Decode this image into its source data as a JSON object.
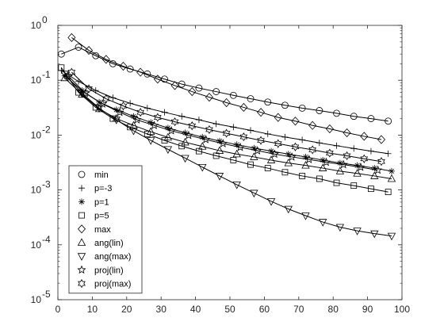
{
  "chart_data": {
    "type": "line",
    "title": "",
    "xlabel": "",
    "ylabel": "",
    "xlim": [
      0,
      100
    ],
    "ylim": [
      1e-05,
      1
    ],
    "yscale": "log",
    "grid": false,
    "legend_location": "lower-left",
    "line_color": "#000000",
    "x_ticks": [
      "0",
      "10",
      "20",
      "30",
      "40",
      "50",
      "60",
      "70",
      "80",
      "90",
      "100"
    ],
    "y_ticks": [
      {
        "base": "10",
        "exp": "0"
      },
      {
        "base": "10",
        "exp": "-1"
      },
      {
        "base": "10",
        "exp": "-2"
      },
      {
        "base": "10",
        "exp": "-3"
      },
      {
        "base": "10",
        "exp": "-4"
      },
      {
        "base": "10",
        "exp": "-5"
      }
    ],
    "series": [
      {
        "name": "min",
        "marker": "circle",
        "x": [
          1,
          6,
          11,
          16,
          21,
          26,
          31,
          36,
          41,
          46,
          51,
          56,
          61,
          66,
          71,
          76,
          81,
          86,
          91,
          96
        ],
        "y": [
          0.3,
          0.4,
          0.28,
          0.2,
          0.16,
          0.13,
          0.105,
          0.085,
          0.072,
          0.062,
          0.053,
          0.046,
          0.04,
          0.035,
          0.031,
          0.028,
          0.025,
          0.022,
          0.02,
          0.018
        ]
      },
      {
        "name": "p=-3",
        "marker": "plus",
        "x": [
          1,
          6,
          11,
          16,
          21,
          26,
          31,
          36,
          41,
          46,
          51,
          56,
          61,
          66,
          71,
          76,
          81,
          86,
          91,
          96
        ],
        "y": [
          0.15,
          0.095,
          0.065,
          0.048,
          0.038,
          0.031,
          0.026,
          0.022,
          0.019,
          0.016,
          0.014,
          0.0122,
          0.0105,
          0.0092,
          0.0082,
          0.0072,
          0.0064,
          0.0057,
          0.0051,
          0.0046
        ]
      },
      {
        "name": "p=1",
        "marker": "asterisk",
        "x": [
          2,
          7,
          12,
          17,
          22,
          27,
          32,
          37,
          42,
          47,
          52,
          57,
          62,
          67,
          72,
          77,
          82,
          87,
          92,
          97
        ],
        "y": [
          0.12,
          0.065,
          0.04,
          0.029,
          0.022,
          0.017,
          0.0135,
          0.011,
          0.0092,
          0.0078,
          0.0067,
          0.0058,
          0.0051,
          0.0045,
          0.004,
          0.0035,
          0.0031,
          0.0028,
          0.0025,
          0.0022
        ]
      },
      {
        "name": "p=5",
        "marker": "square",
        "x": [
          1,
          6,
          11,
          16,
          21,
          26,
          31,
          36,
          41,
          46,
          51,
          56,
          61,
          66,
          71,
          76,
          81,
          86,
          91,
          96
        ],
        "y": [
          0.17,
          0.06,
          0.032,
          0.02,
          0.014,
          0.0105,
          0.008,
          0.0063,
          0.0051,
          0.0042,
          0.0035,
          0.0029,
          0.0025,
          0.0021,
          0.0018,
          0.0016,
          0.00135,
          0.0012,
          0.00105,
          0.00092
        ]
      },
      {
        "name": "max",
        "marker": "diamond",
        "x": [
          4,
          9,
          14,
          19,
          24,
          29,
          34,
          39,
          44,
          49,
          54,
          59,
          64,
          69,
          74,
          79,
          84,
          89,
          94
        ],
        "y": [
          0.6,
          0.35,
          0.24,
          0.18,
          0.14,
          0.105,
          0.08,
          0.062,
          0.049,
          0.039,
          0.032,
          0.026,
          0.021,
          0.018,
          0.015,
          0.013,
          0.011,
          0.0095,
          0.0083
        ]
      },
      {
        "name": "ang(lin)",
        "marker": "triangle-up",
        "x": [
          2,
          7,
          12,
          17,
          22,
          27,
          32,
          37,
          42,
          47,
          52,
          57,
          62,
          67,
          72,
          77,
          82,
          87,
          92,
          97
        ],
        "y": [
          0.11,
          0.055,
          0.03,
          0.02,
          0.015,
          0.0115,
          0.0091,
          0.0074,
          0.0062,
          0.0052,
          0.0045,
          0.004,
          0.0035,
          0.0031,
          0.0028,
          0.0025,
          0.0022,
          0.002,
          0.0018,
          0.0016
        ]
      },
      {
        "name": "ang(max)",
        "marker": "triangle-down",
        "x": [
          2,
          7,
          12,
          17,
          22,
          27,
          32,
          37,
          42,
          47,
          52,
          57,
          62,
          67,
          72,
          77,
          82,
          87,
          92,
          97
        ],
        "y": [
          0.13,
          0.058,
          0.031,
          0.019,
          0.012,
          0.008,
          0.0055,
          0.0038,
          0.0026,
          0.0018,
          0.00125,
          0.00088,
          0.00062,
          0.00045,
          0.00034,
          0.00026,
          0.00021,
          0.00018,
          0.00016,
          0.000145
        ]
      },
      {
        "name": "proj(lin)",
        "marker": "star5",
        "x": [
          3,
          8,
          13,
          18,
          23,
          28,
          33,
          38,
          43,
          48,
          53,
          58,
          63,
          68,
          73,
          78,
          83,
          88,
          93
        ],
        "y": [
          0.12,
          0.058,
          0.037,
          0.026,
          0.019,
          0.015,
          0.012,
          0.0099,
          0.0083,
          0.007,
          0.006,
          0.0052,
          0.0045,
          0.004,
          0.0036,
          0.0032,
          0.0029,
          0.0026,
          0.0023
        ]
      },
      {
        "name": "proj(max)",
        "marker": "star6",
        "x": [
          4,
          9,
          14,
          19,
          24,
          29,
          34,
          39,
          44,
          49,
          54,
          59,
          64,
          69,
          74,
          79,
          84,
          89,
          94
        ],
        "y": [
          0.14,
          0.07,
          0.046,
          0.034,
          0.026,
          0.021,
          0.0175,
          0.0148,
          0.0126,
          0.0108,
          0.0093,
          0.008,
          0.007,
          0.0061,
          0.0054,
          0.0047,
          0.0042,
          0.0037,
          0.0033
        ]
      }
    ]
  }
}
